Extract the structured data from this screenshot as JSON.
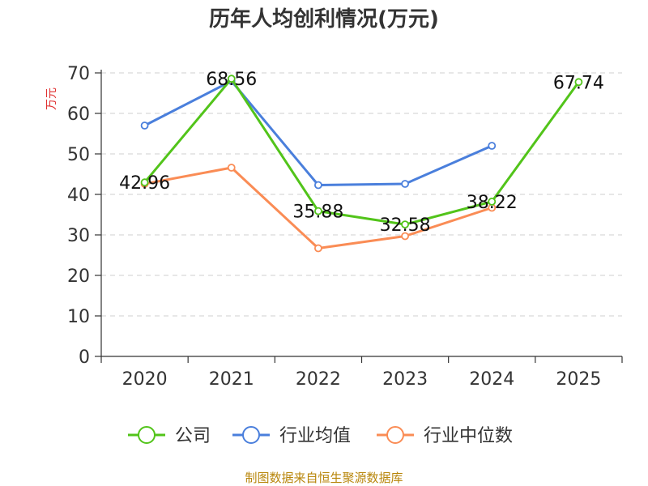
{
  "chart_data": {
    "type": "line",
    "title": "历年人均创利情况(万元)",
    "ylabel": "万元",
    "xlabel": "",
    "ylim": [
      0,
      70
    ],
    "yticks": [
      0,
      10,
      20,
      30,
      40,
      50,
      60,
      70
    ],
    "categories": [
      "2020",
      "2021",
      "2022",
      "2023",
      "2024",
      "2025"
    ],
    "grid": true,
    "legend_position": "bottom",
    "series": [
      {
        "name": "公司",
        "color": "#52c41a",
        "values": [
          42.96,
          68.56,
          35.88,
          32.58,
          38.22,
          67.74
        ],
        "labeled": true
      },
      {
        "name": "行业均值",
        "color": "#4a7fdc",
        "values": [
          57.0,
          68.0,
          42.3,
          42.6,
          52.0,
          null
        ],
        "labeled": false
      },
      {
        "name": "行业中位数",
        "color": "#fa8c55",
        "values": [
          42.6,
          46.6,
          26.7,
          29.7,
          36.7,
          null
        ],
        "labeled": false
      }
    ],
    "data_labels": [
      "42.96",
      "68.56",
      "35.88",
      "32.58",
      "38.22",
      "67.74"
    ]
  },
  "source_text": "制图数据来自恒生聚源数据库"
}
